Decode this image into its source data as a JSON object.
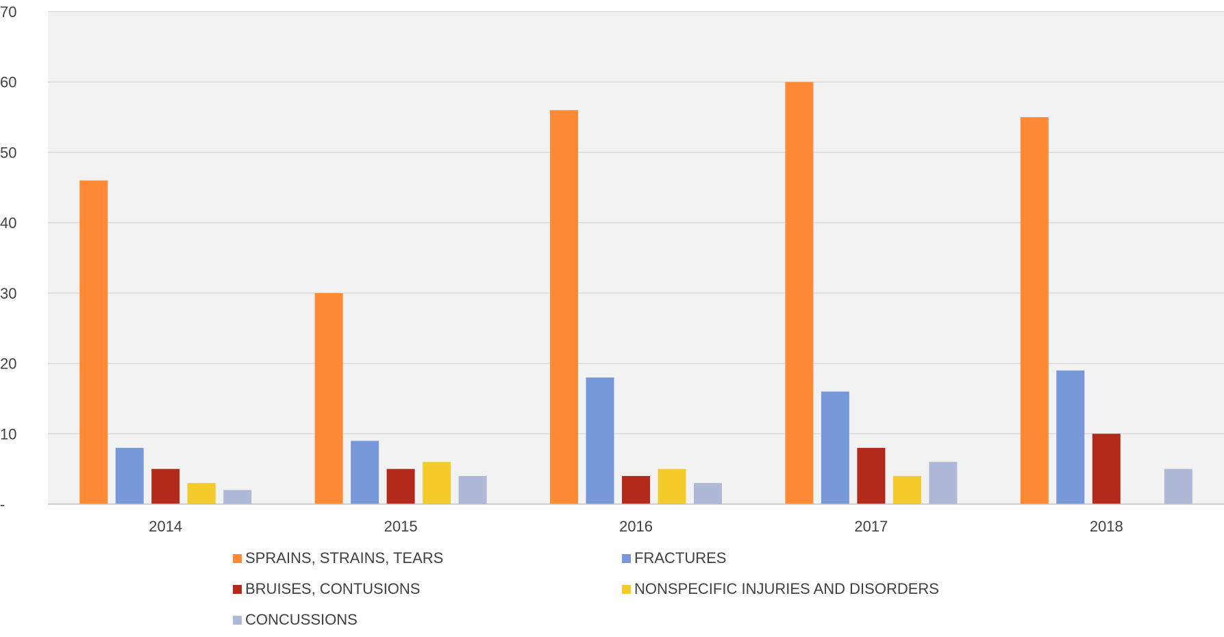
{
  "chart_data": {
    "type": "bar",
    "categories": [
      "2014",
      "2015",
      "2016",
      "2017",
      "2018"
    ],
    "series": [
      {
        "name": "SPRAINS, STRAINS, TEARS",
        "color": "#FF8A36",
        "values": [
          46,
          30,
          56,
          60,
          55
        ]
      },
      {
        "name": "FRACTURES",
        "color": "#7799D9",
        "values": [
          8,
          9,
          18,
          16,
          19
        ]
      },
      {
        "name": "BRUISES, CONTUSIONS",
        "color": "#B22A1A",
        "values": [
          5,
          5,
          4,
          8,
          10
        ]
      },
      {
        "name": "NONSPECIFIC INJURIES AND DISORDERS",
        "color": "#F4CB2B",
        "values": [
          3,
          6,
          5,
          4,
          0
        ]
      },
      {
        "name": "CONCUSSIONS",
        "color": "#AEB9D8",
        "values": [
          2,
          4,
          3,
          6,
          5
        ]
      }
    ],
    "ylim": [
      0,
      70
    ],
    "yticks": [
      0,
      10,
      20,
      30,
      40,
      50,
      60,
      70
    ],
    "ytick_labels": [
      "-",
      "10",
      "20",
      "30",
      "40",
      "50",
      "60",
      "70"
    ],
    "grid": true,
    "legend_position": "bottom",
    "plot_background": "#F2F2F2",
    "gridline_color": "#D9D9D9",
    "text_color": "#404040"
  }
}
